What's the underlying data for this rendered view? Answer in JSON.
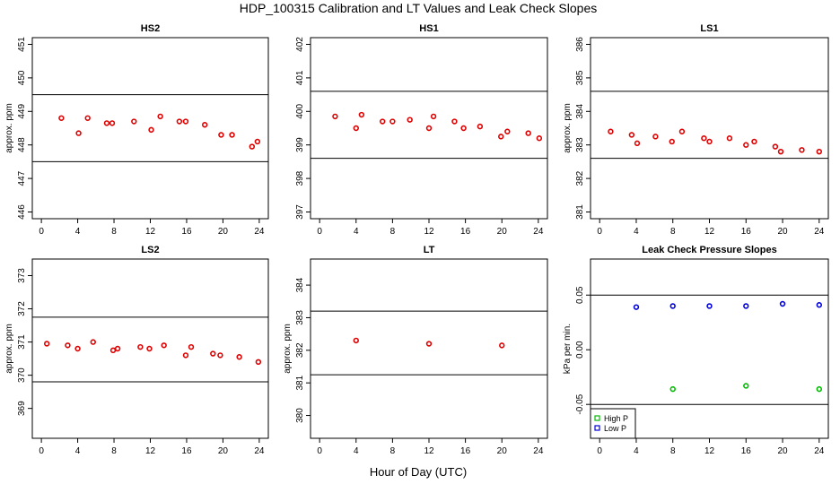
{
  "figure": {
    "title": "HDP_100315  Calibration and LT Values and Leak Check Slopes",
    "xlabel": "Hour of Day (UTC)"
  },
  "chart_data": [
    {
      "type": "scatter",
      "title": "HS2",
      "ylabel": "approx. ppm",
      "xlim": [
        -1,
        25
      ],
      "ylim": [
        445.8,
        451.2
      ],
      "xticks": [
        0,
        4,
        8,
        12,
        16,
        20,
        24
      ],
      "yticks": [
        446,
        447,
        448,
        449,
        450,
        451
      ],
      "hlines": [
        449.5,
        447.5
      ],
      "series": [
        {
          "color": "#dd0000",
          "x": [
            2.2,
            4.1,
            5.1,
            7.2,
            7.8,
            10.2,
            12.1,
            13.1,
            15.2,
            15.9,
            18.0,
            19.8,
            21.0,
            23.2,
            23.8
          ],
          "y": [
            448.8,
            448.35,
            448.8,
            448.65,
            448.65,
            448.7,
            448.45,
            448.85,
            448.7,
            448.7,
            448.6,
            448.3,
            448.3,
            447.95,
            448.1
          ]
        }
      ]
    },
    {
      "type": "scatter",
      "title": "HS1",
      "ylabel": "",
      "xlim": [
        -1,
        25
      ],
      "ylim": [
        396.8,
        402.2
      ],
      "xticks": [
        0,
        4,
        8,
        12,
        16,
        20,
        24
      ],
      "yticks": [
        397,
        398,
        399,
        400,
        401,
        402
      ],
      "hlines": [
        400.6,
        398.6
      ],
      "series": [
        {
          "color": "#dd0000",
          "x": [
            1.7,
            4.0,
            4.6,
            6.9,
            8.0,
            9.9,
            12.0,
            12.5,
            14.8,
            15.8,
            17.6,
            19.9,
            20.6,
            22.9,
            24.1
          ],
          "y": [
            399.85,
            399.5,
            399.9,
            399.7,
            399.7,
            399.75,
            399.5,
            399.85,
            399.7,
            399.5,
            399.55,
            399.25,
            399.4,
            399.35,
            399.2
          ]
        }
      ]
    },
    {
      "type": "scatter",
      "title": "LS1",
      "ylabel": "approx. ppm",
      "xlim": [
        -1,
        25
      ],
      "ylim": [
        380.8,
        386.2
      ],
      "xticks": [
        0,
        4,
        8,
        12,
        16,
        20,
        24
      ],
      "yticks": [
        381,
        382,
        383,
        384,
        385,
        386
      ],
      "hlines": [
        384.6,
        382.6
      ],
      "series": [
        {
          "color": "#dd0000",
          "x": [
            1.2,
            3.5,
            4.1,
            6.1,
            7.9,
            9.0,
            11.4,
            12.0,
            14.2,
            16.0,
            16.9,
            19.2,
            19.8,
            22.1,
            24.0
          ],
          "y": [
            383.4,
            383.3,
            383.05,
            383.25,
            383.1,
            383.4,
            383.2,
            383.1,
            383.2,
            383.0,
            383.1,
            382.95,
            382.8,
            382.85,
            382.8
          ]
        }
      ]
    },
    {
      "type": "scatter",
      "title": "LS2",
      "ylabel": "approx. ppm",
      "xlim": [
        -1,
        25
      ],
      "ylim": [
        368.1,
        373.5
      ],
      "xticks": [
        0,
        4,
        8,
        12,
        16,
        20,
        24
      ],
      "yticks": [
        369,
        370,
        371,
        372,
        373
      ],
      "hlines": [
        371.75,
        369.8
      ],
      "series": [
        {
          "color": "#dd0000",
          "x": [
            0.6,
            2.9,
            4.0,
            5.7,
            7.9,
            8.4,
            10.9,
            11.9,
            13.5,
            15.9,
            16.5,
            18.9,
            19.7,
            21.8,
            23.9
          ],
          "y": [
            370.95,
            370.9,
            370.8,
            371.0,
            370.75,
            370.8,
            370.85,
            370.8,
            370.9,
            370.6,
            370.85,
            370.65,
            370.6,
            370.55,
            370.4
          ]
        }
      ]
    },
    {
      "type": "scatter",
      "title": "LT",
      "ylabel": "approx. ppm",
      "xlim": [
        -1,
        25
      ],
      "ylim": [
        379.3,
        384.8
      ],
      "xticks": [
        0,
        4,
        8,
        12,
        16,
        20,
        24
      ],
      "yticks": [
        380,
        381,
        382,
        383,
        384
      ],
      "hlines": [
        383.2,
        381.25
      ],
      "series": [
        {
          "color": "#dd0000",
          "x": [
            4.0,
            12.0,
            20.0
          ],
          "y": [
            382.3,
            382.2,
            382.15
          ]
        }
      ]
    },
    {
      "type": "scatter",
      "title": "Leak Check Pressure Slopes",
      "ylabel": "kPa per min.",
      "xlim": [
        -1,
        25
      ],
      "ylim": [
        -0.081,
        0.083
      ],
      "xticks": [
        0,
        4,
        8,
        12,
        16,
        20,
        24
      ],
      "yticks": [
        -0.05,
        0.0,
        0.05
      ],
      "ytick_labels": [
        "-0.05",
        "0.00",
        "0.05"
      ],
      "hlines": [
        0.05,
        -0.05
      ],
      "legend": {
        "position": "bottom-left",
        "entries": [
          "High P",
          "Low P"
        ]
      },
      "series": [
        {
          "name": "High P",
          "color": "#00bb00",
          "x": [
            8,
            16,
            24
          ],
          "y": [
            -0.036,
            -0.033,
            -0.036
          ]
        },
        {
          "name": "Low P",
          "color": "#0000dd",
          "x": [
            4,
            8,
            12,
            16,
            20,
            24
          ],
          "y": [
            0.039,
            0.04,
            0.04,
            0.04,
            0.042,
            0.041
          ]
        }
      ]
    }
  ]
}
